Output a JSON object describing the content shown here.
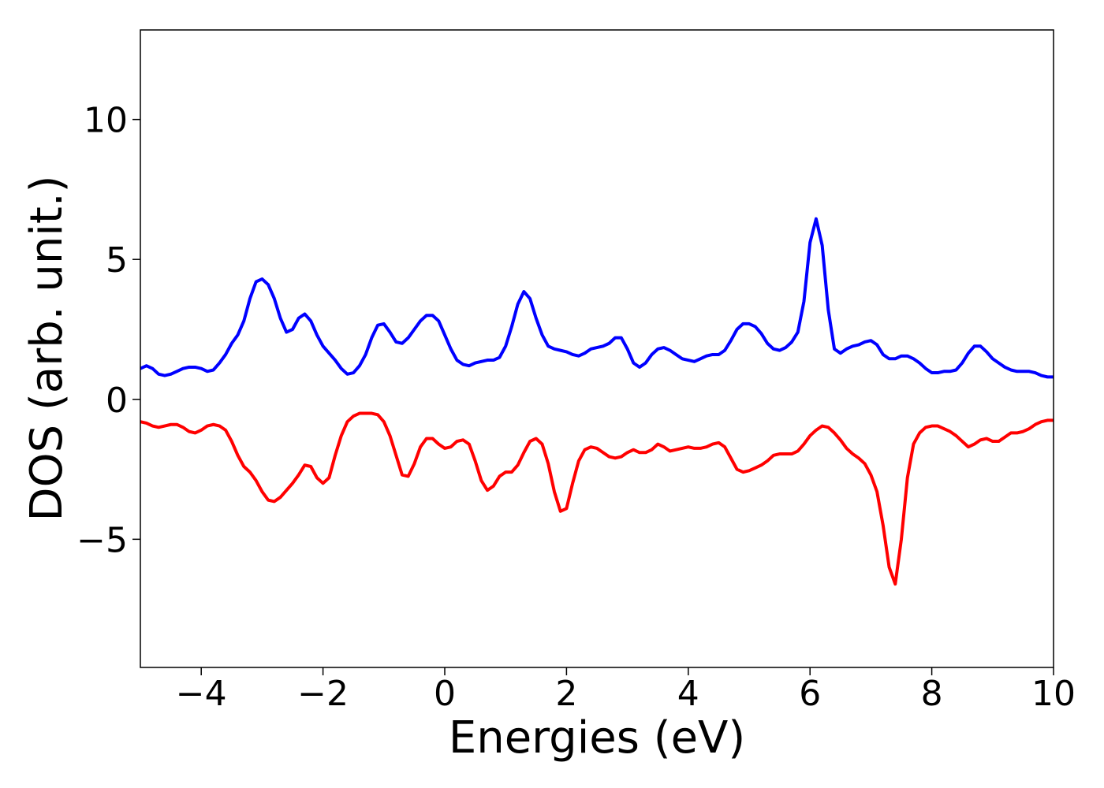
{
  "chart_data": {
    "type": "line",
    "xlabel": "Energies (eV)",
    "ylabel": "DOS (arb. unit.)",
    "xlim": [
      -5,
      10
    ],
    "ylim": [
      -9.58,
      13.2
    ],
    "xticks": [
      {
        "value": -4,
        "label": "−4"
      },
      {
        "value": -2,
        "label": "−2"
      },
      0,
      2,
      4,
      6,
      8,
      10
    ],
    "yticks": [
      {
        "value": -5,
        "label": "−5"
      },
      0,
      5,
      10
    ],
    "x": [
      -5.0,
      -4.9,
      -4.8,
      -4.7,
      -4.6,
      -4.5,
      -4.4,
      -4.3,
      -4.2,
      -4.1,
      -4.0,
      -3.9,
      -3.8,
      -3.7,
      -3.6,
      -3.5,
      -3.4,
      -3.3,
      -3.2,
      -3.1,
      -3.0,
      -2.9,
      -2.8,
      -2.7,
      -2.6,
      -2.5,
      -2.4,
      -2.3,
      -2.2,
      -2.1,
      -2.0,
      -1.9,
      -1.8,
      -1.7,
      -1.6,
      -1.5,
      -1.4,
      -1.3,
      -1.2,
      -1.1,
      -1.0,
      -0.9,
      -0.8,
      -0.7,
      -0.6,
      -0.5,
      -0.4,
      -0.3,
      -0.2,
      -0.1,
      0.0,
      0.1,
      0.2,
      0.3,
      0.4,
      0.5,
      0.6,
      0.7,
      0.8,
      0.9,
      1.0,
      1.1,
      1.2,
      1.3,
      1.4,
      1.5,
      1.6,
      1.7,
      1.8,
      1.9,
      2.0,
      2.1,
      2.2,
      2.3,
      2.4,
      2.5,
      2.6,
      2.7,
      2.8,
      2.9,
      3.0,
      3.1,
      3.2,
      3.3,
      3.4,
      3.5,
      3.6,
      3.7,
      3.8,
      3.9,
      4.0,
      4.1,
      4.2,
      4.3,
      4.4,
      4.5,
      4.6,
      4.7,
      4.8,
      4.9,
      5.0,
      5.1,
      5.2,
      5.3,
      5.4,
      5.5,
      5.6,
      5.7,
      5.8,
      5.9,
      6.0,
      6.1,
      6.2,
      6.3,
      6.4,
      6.5,
      6.6,
      6.7,
      6.8,
      6.9,
      7.0,
      7.1,
      7.2,
      7.3,
      7.4,
      7.5,
      7.6,
      7.7,
      7.8,
      7.9,
      8.0,
      8.1,
      8.2,
      8.3,
      8.4,
      8.5,
      8.6,
      8.7,
      8.8,
      8.9,
      9.0,
      9.1,
      9.2,
      9.3,
      9.4,
      9.5,
      9.6,
      9.7,
      9.8,
      9.9,
      10.0
    ],
    "series": [
      {
        "color": "#0000ff",
        "values": [
          1.1,
          1.2,
          1.1,
          0.9,
          0.85,
          0.9,
          1.0,
          1.1,
          1.15,
          1.15,
          1.1,
          1.0,
          1.05,
          1.3,
          1.6,
          2.0,
          2.3,
          2.8,
          3.6,
          4.2,
          4.3,
          4.1,
          3.6,
          2.9,
          2.4,
          2.5,
          2.9,
          3.05,
          2.8,
          2.3,
          1.9,
          1.65,
          1.4,
          1.1,
          0.9,
          0.95,
          1.2,
          1.6,
          2.2,
          2.65,
          2.7,
          2.4,
          2.05,
          2.0,
          2.2,
          2.5,
          2.8,
          3.0,
          3.0,
          2.8,
          2.3,
          1.8,
          1.4,
          1.25,
          1.2,
          1.3,
          1.35,
          1.4,
          1.4,
          1.5,
          1.9,
          2.6,
          3.4,
          3.85,
          3.6,
          2.9,
          2.3,
          1.9,
          1.8,
          1.75,
          1.7,
          1.6,
          1.55,
          1.65,
          1.8,
          1.85,
          1.9,
          2.0,
          2.2,
          2.2,
          1.8,
          1.3,
          1.15,
          1.3,
          1.6,
          1.8,
          1.85,
          1.75,
          1.6,
          1.45,
          1.4,
          1.35,
          1.45,
          1.55,
          1.6,
          1.6,
          1.75,
          2.1,
          2.5,
          2.7,
          2.7,
          2.6,
          2.35,
          2.0,
          1.8,
          1.75,
          1.85,
          2.05,
          2.4,
          3.5,
          5.6,
          6.45,
          5.5,
          3.2,
          1.8,
          1.65,
          1.8,
          1.9,
          1.95,
          2.05,
          2.1,
          1.95,
          1.6,
          1.45,
          1.45,
          1.55,
          1.55,
          1.45,
          1.3,
          1.1,
          0.95,
          0.95,
          1.0,
          1.0,
          1.05,
          1.3,
          1.65,
          1.9,
          1.9,
          1.7,
          1.45,
          1.3,
          1.15,
          1.05,
          1.0,
          1.0,
          1.0,
          0.95,
          0.85,
          0.8,
          0.8
        ]
      },
      {
        "color": "#ff0000",
        "values": [
          -0.8,
          -0.85,
          -0.95,
          -1.0,
          -0.95,
          -0.9,
          -0.9,
          -1.0,
          -1.15,
          -1.2,
          -1.1,
          -0.95,
          -0.9,
          -0.95,
          -1.1,
          -1.5,
          -2.0,
          -2.4,
          -2.6,
          -2.9,
          -3.3,
          -3.6,
          -3.65,
          -3.5,
          -3.25,
          -3.0,
          -2.7,
          -2.35,
          -2.4,
          -2.8,
          -3.0,
          -2.8,
          -2.0,
          -1.3,
          -0.8,
          -0.6,
          -0.5,
          -0.5,
          -0.5,
          -0.55,
          -0.8,
          -1.3,
          -2.0,
          -2.7,
          -2.75,
          -2.3,
          -1.7,
          -1.4,
          -1.4,
          -1.6,
          -1.75,
          -1.7,
          -1.5,
          -1.45,
          -1.6,
          -2.2,
          -2.9,
          -3.25,
          -3.1,
          -2.75,
          -2.6,
          -2.6,
          -2.35,
          -1.9,
          -1.5,
          -1.4,
          -1.6,
          -2.3,
          -3.3,
          -4.0,
          -3.9,
          -3.0,
          -2.2,
          -1.8,
          -1.7,
          -1.75,
          -1.9,
          -2.05,
          -2.1,
          -2.05,
          -1.9,
          -1.8,
          -1.9,
          -1.9,
          -1.8,
          -1.6,
          -1.7,
          -1.85,
          -1.8,
          -1.75,
          -1.7,
          -1.75,
          -1.75,
          -1.7,
          -1.6,
          -1.55,
          -1.7,
          -2.1,
          -2.5,
          -2.6,
          -2.55,
          -2.45,
          -2.35,
          -2.2,
          -2.0,
          -1.95,
          -1.95,
          -1.95,
          -1.85,
          -1.6,
          -1.3,
          -1.1,
          -0.95,
          -1.0,
          -1.2,
          -1.45,
          -1.75,
          -1.95,
          -2.1,
          -2.3,
          -2.7,
          -3.3,
          -4.5,
          -6.0,
          -6.6,
          -5.0,
          -2.8,
          -1.6,
          -1.2,
          -1.0,
          -0.95,
          -0.95,
          -1.05,
          -1.15,
          -1.3,
          -1.5,
          -1.7,
          -1.6,
          -1.45,
          -1.4,
          -1.5,
          -1.5,
          -1.35,
          -1.2,
          -1.2,
          -1.15,
          -1.05,
          -0.9,
          -0.8,
          -0.75,
          -0.75
        ]
      }
    ]
  }
}
